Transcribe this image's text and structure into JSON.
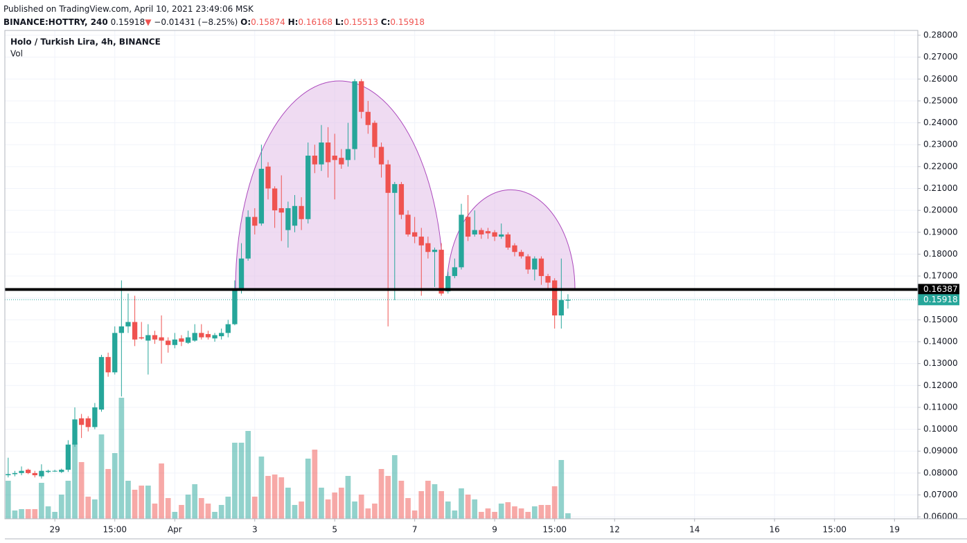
{
  "header": {
    "published": "Published on TradingView.com, April 10, 2021 23:49:06 MSK",
    "symbol": "BINANCE:HOTTRY, 240",
    "arrow": "▼",
    "change": "−0.01431 (−8.25%)",
    "ohlc_keys": [
      "O:",
      "H:",
      "L:",
      "C:"
    ]
  },
  "chart_data": {
    "type": "candlestick",
    "title": "Holo / Turkish Lira, 4h, BINANCE",
    "volume_label": "Vol",
    "up_color": "#26a69a",
    "down_color": "#ef5350",
    "grid": true,
    "xlim": [
      -0.5,
      136.5
    ],
    "ylim": [
      0.0591,
      0.2822
    ],
    "xticks": [
      {
        "value": 7,
        "label": "29"
      },
      {
        "value": 16,
        "label": "15:00"
      },
      {
        "value": 25,
        "label": "Apr"
      },
      {
        "value": 37,
        "label": "3"
      },
      {
        "value": 49,
        "label": "5"
      },
      {
        "value": 61,
        "label": "7"
      },
      {
        "value": 73,
        "label": "9"
      },
      {
        "value": 82,
        "label": "15:00"
      },
      {
        "value": 91,
        "label": "12"
      },
      {
        "value": 103,
        "label": "14"
      },
      {
        "value": 115,
        "label": "16"
      },
      {
        "value": 124,
        "label": "15:00"
      },
      {
        "value": 133,
        "label": "19"
      }
    ],
    "yticks": [
      {
        "value": 0.06,
        "label": "0.06000"
      },
      {
        "value": 0.07,
        "label": "0.07000"
      },
      {
        "value": 0.08,
        "label": "0.08000"
      },
      {
        "value": 0.09,
        "label": "0.09000"
      },
      {
        "value": 0.1,
        "label": "0.10000"
      },
      {
        "value": 0.11,
        "label": "0.11000"
      },
      {
        "value": 0.12,
        "label": "0.12000"
      },
      {
        "value": 0.13,
        "label": "0.13000"
      },
      {
        "value": 0.14,
        "label": "0.14000"
      },
      {
        "value": 0.15,
        "label": "0.15000"
      },
      {
        "value": 0.16,
        "label": "0.16000"
      },
      {
        "value": 0.17,
        "label": "0.17000"
      },
      {
        "value": 0.18,
        "label": "0.18000"
      },
      {
        "value": 0.19,
        "label": "0.19000"
      },
      {
        "value": 0.2,
        "label": "0.20000"
      },
      {
        "value": 0.21,
        "label": "0.21000"
      },
      {
        "value": 0.22,
        "label": "0.22000"
      },
      {
        "value": 0.23,
        "label": "0.23000"
      },
      {
        "value": 0.24,
        "label": "0.24000"
      },
      {
        "value": 0.25,
        "label": "0.25000"
      },
      {
        "value": 0.26,
        "label": "0.26000"
      },
      {
        "value": 0.27,
        "label": "0.27000"
      },
      {
        "value": 0.28,
        "label": "0.28000"
      }
    ],
    "price_lines": [
      {
        "value": 0.16387,
        "color": "#000000"
      },
      {
        "value": 0.15918,
        "color": "#26a69a"
      }
    ],
    "open": [
      0.079,
      0.0795,
      0.08,
      0.0815,
      0.08,
      0.0785,
      0.0805,
      0.081,
      0.0805,
      0.0815,
      0.093,
      0.105,
      0.105,
      0.101,
      0.109,
      0.133,
      0.126,
      0.144,
      0.147,
      0.149,
      0.142,
      0.1405,
      0.143,
      0.142,
      0.1405,
      0.1385,
      0.1415,
      0.1395,
      0.1405,
      0.144,
      0.1435,
      0.1415,
      0.1425,
      0.144,
      0.148,
      0.164,
      0.178,
      0.197,
      0.194,
      0.22,
      0.21,
      0.201,
      0.191,
      0.193,
      0.202,
      0.196,
      0.225,
      0.221,
      0.231,
      0.225,
      0.224,
      0.223,
      0.228,
      0.259,
      0.245,
      0.24,
      0.229,
      0.221,
      0.208,
      0.212,
      0.198,
      0.19,
      0.188,
      0.185,
      0.181,
      0.182,
      0.163,
      0.17,
      0.174,
      0.197,
      0.189,
      0.191,
      0.1905,
      0.19,
      0.188,
      0.189,
      0.184,
      0.181,
      0.179,
      0.173,
      0.178,
      0.17,
      0.168,
      0.152,
      0.15874
    ],
    "high": [
      0.087,
      0.081,
      0.083,
      0.082,
      0.081,
      0.084,
      0.0815,
      0.0815,
      0.082,
      0.095,
      0.11,
      0.107,
      0.106,
      0.112,
      0.134,
      0.135,
      0.147,
      0.168,
      0.162,
      0.161,
      0.149,
      0.148,
      0.145,
      0.152,
      0.142,
      0.144,
      0.143,
      0.145,
      0.148,
      0.148,
      0.145,
      0.144,
      0.146,
      0.15,
      0.168,
      0.185,
      0.2,
      0.201,
      0.23,
      0.222,
      0.211,
      0.216,
      0.204,
      0.207,
      0.206,
      0.231,
      0.23,
      0.239,
      0.238,
      0.235,
      0.228,
      0.24,
      0.26,
      0.26,
      0.25,
      0.241,
      0.231,
      0.223,
      0.213,
      0.213,
      0.2,
      0.197,
      0.192,
      0.188,
      0.183,
      0.185,
      0.172,
      0.178,
      0.203,
      0.207,
      0.2,
      0.192,
      0.192,
      0.191,
      0.194,
      0.19,
      0.185,
      0.182,
      0.18,
      0.179,
      0.179,
      0.171,
      0.169,
      0.178,
      0.16168
    ],
    "low": [
      0.078,
      0.0785,
      0.079,
      0.0795,
      0.078,
      0.0775,
      0.08,
      0.0805,
      0.08,
      0.0805,
      0.092,
      0.096,
      0.099,
      0.1,
      0.108,
      0.124,
      0.125,
      0.115,
      0.144,
      0.138,
      0.141,
      0.125,
      0.139,
      0.13,
      0.135,
      0.137,
      0.138,
      0.139,
      0.14,
      0.141,
      0.141,
      0.14,
      0.141,
      0.142,
      0.1475,
      0.162,
      0.177,
      0.189,
      0.193,
      0.205,
      0.192,
      0.186,
      0.183,
      0.19,
      0.191,
      0.194,
      0.217,
      0.218,
      0.215,
      0.205,
      0.219,
      0.22,
      0.223,
      0.242,
      0.235,
      0.224,
      0.215,
      0.147,
      0.159,
      0.196,
      0.188,
      0.185,
      0.161,
      0.178,
      0.165,
      0.161,
      0.162,
      0.169,
      0.173,
      0.186,
      0.188,
      0.187,
      0.187,
      0.186,
      0.187,
      0.182,
      0.179,
      0.178,
      0.171,
      0.168,
      0.166,
      0.164,
      0.146,
      0.146,
      0.15513
    ],
    "close": [
      0.0795,
      0.08,
      0.081,
      0.08,
      0.079,
      0.081,
      0.081,
      0.081,
      0.0815,
      0.093,
      0.1045,
      0.102,
      0.101,
      0.11,
      0.133,
      0.126,
      0.144,
      0.147,
      0.149,
      0.141,
      0.1415,
      0.143,
      0.141,
      0.1405,
      0.1385,
      0.141,
      0.14,
      0.142,
      0.144,
      0.142,
      0.142,
      0.143,
      0.144,
      0.148,
      0.164,
      0.178,
      0.197,
      0.193,
      0.219,
      0.21,
      0.2,
      0.199,
      0.201,
      0.202,
      0.196,
      0.225,
      0.221,
      0.231,
      0.222,
      0.223,
      0.221,
      0.228,
      0.259,
      0.245,
      0.239,
      0.229,
      0.221,
      0.208,
      0.212,
      0.198,
      0.189,
      0.188,
      0.184,
      0.181,
      0.182,
      0.162,
      0.17,
      0.174,
      0.198,
      0.188,
      0.191,
      0.189,
      0.1895,
      0.188,
      0.189,
      0.183,
      0.181,
      0.179,
      0.173,
      0.178,
      0.17,
      0.167,
      0.152,
      0.159,
      0.15918
    ],
    "volume": [
      55,
      12,
      14,
      14,
      14,
      52,
      18,
      10,
      35,
      55,
      110,
      82,
      32,
      28,
      122,
      72,
      95,
      175,
      55,
      42,
      48,
      48,
      22,
      80,
      30,
      10,
      20,
      35,
      50,
      30,
      22,
      10,
      20,
      32,
      110,
      110,
      127,
      32,
      90,
      62,
      64,
      60,
      45,
      20,
      25,
      87,
      100,
      45,
      28,
      38,
      45,
      62,
      25,
      35,
      15,
      22,
      72,
      62,
      92,
      55,
      30,
      12,
      40,
      55,
      50,
      40,
      25,
      12,
      44,
      35,
      28,
      10,
      15,
      10,
      22,
      24,
      18,
      15,
      10,
      18,
      20,
      20,
      47,
      85,
      8
    ]
  }
}
